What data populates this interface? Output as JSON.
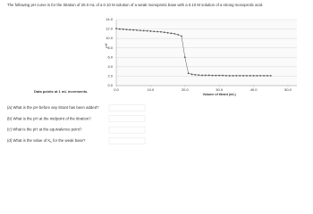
{
  "intro": "The following pH curve is for the titration of 20.0 mL of a 0.10 M solution of a weak monoprotic base with a 0.10 M solution of a strong monoprotic acid.",
  "note": "Data points at 1 mL increments.",
  "questions": [
    {
      "text": "(a) What is the pH before any titrant has been added?"
    },
    {
      "text": "(b) What is the pH at the midpoint of the titration?"
    },
    {
      "text": "(c) What is the pH at the equivalence point?"
    },
    {
      "text": "(d) What is the value of K",
      "sub": "b",
      "tail": " for the weak base?"
    }
  ],
  "chart_data": {
    "type": "line",
    "xlabel": "Volume of titrant (mL)",
    "ylabel": "pH",
    "x": [
      0,
      1,
      2,
      3,
      4,
      5,
      6,
      7,
      8,
      9,
      10,
      11,
      12,
      13,
      14,
      15,
      16,
      17,
      18,
      19,
      20,
      21,
      22,
      23,
      24,
      25,
      26,
      27,
      28,
      29,
      30,
      31,
      32,
      33,
      34,
      35,
      36,
      37,
      38,
      39,
      40,
      41,
      42,
      43,
      44,
      45
    ],
    "values": [
      12.1,
      12.0,
      11.95,
      11.9,
      11.85,
      11.8,
      11.75,
      11.7,
      11.65,
      11.6,
      11.55,
      11.5,
      11.45,
      11.4,
      11.3,
      11.2,
      11.1,
      11.0,
      10.8,
      10.5,
      6.0,
      2.6,
      2.4,
      2.3,
      2.25,
      2.2,
      2.2,
      2.2,
      2.15,
      2.15,
      2.15,
      2.15,
      2.1,
      2.1,
      2.1,
      2.1,
      2.1,
      2.1,
      2.1,
      2.1,
      2.1,
      2.1,
      2.1,
      2.1,
      2.1,
      2.1
    ],
    "color": "#555555",
    "xlim": [
      0,
      50
    ],
    "xticks": [
      {
        "value": 0,
        "label": "0.0"
      },
      {
        "value": 10,
        "label": "10.0"
      },
      {
        "value": 20,
        "label": "20.0"
      },
      {
        "value": 30,
        "label": "30.0"
      },
      {
        "value": 40,
        "label": "40.0"
      },
      {
        "value": 50,
        "label": "50.0"
      }
    ],
    "ylim": [
      0,
      14
    ],
    "yticks": [
      {
        "value": 0,
        "label": "0.0"
      },
      {
        "value": 2,
        "label": "2.0"
      },
      {
        "value": 4,
        "label": "4.0"
      },
      {
        "value": 6,
        "label": "6.0"
      },
      {
        "value": 8,
        "label": "8.0"
      },
      {
        "value": 10,
        "label": "10.0"
      },
      {
        "value": 12,
        "label": "12.0"
      },
      {
        "value": 14,
        "label": "14.0"
      }
    ],
    "grid": true
  }
}
